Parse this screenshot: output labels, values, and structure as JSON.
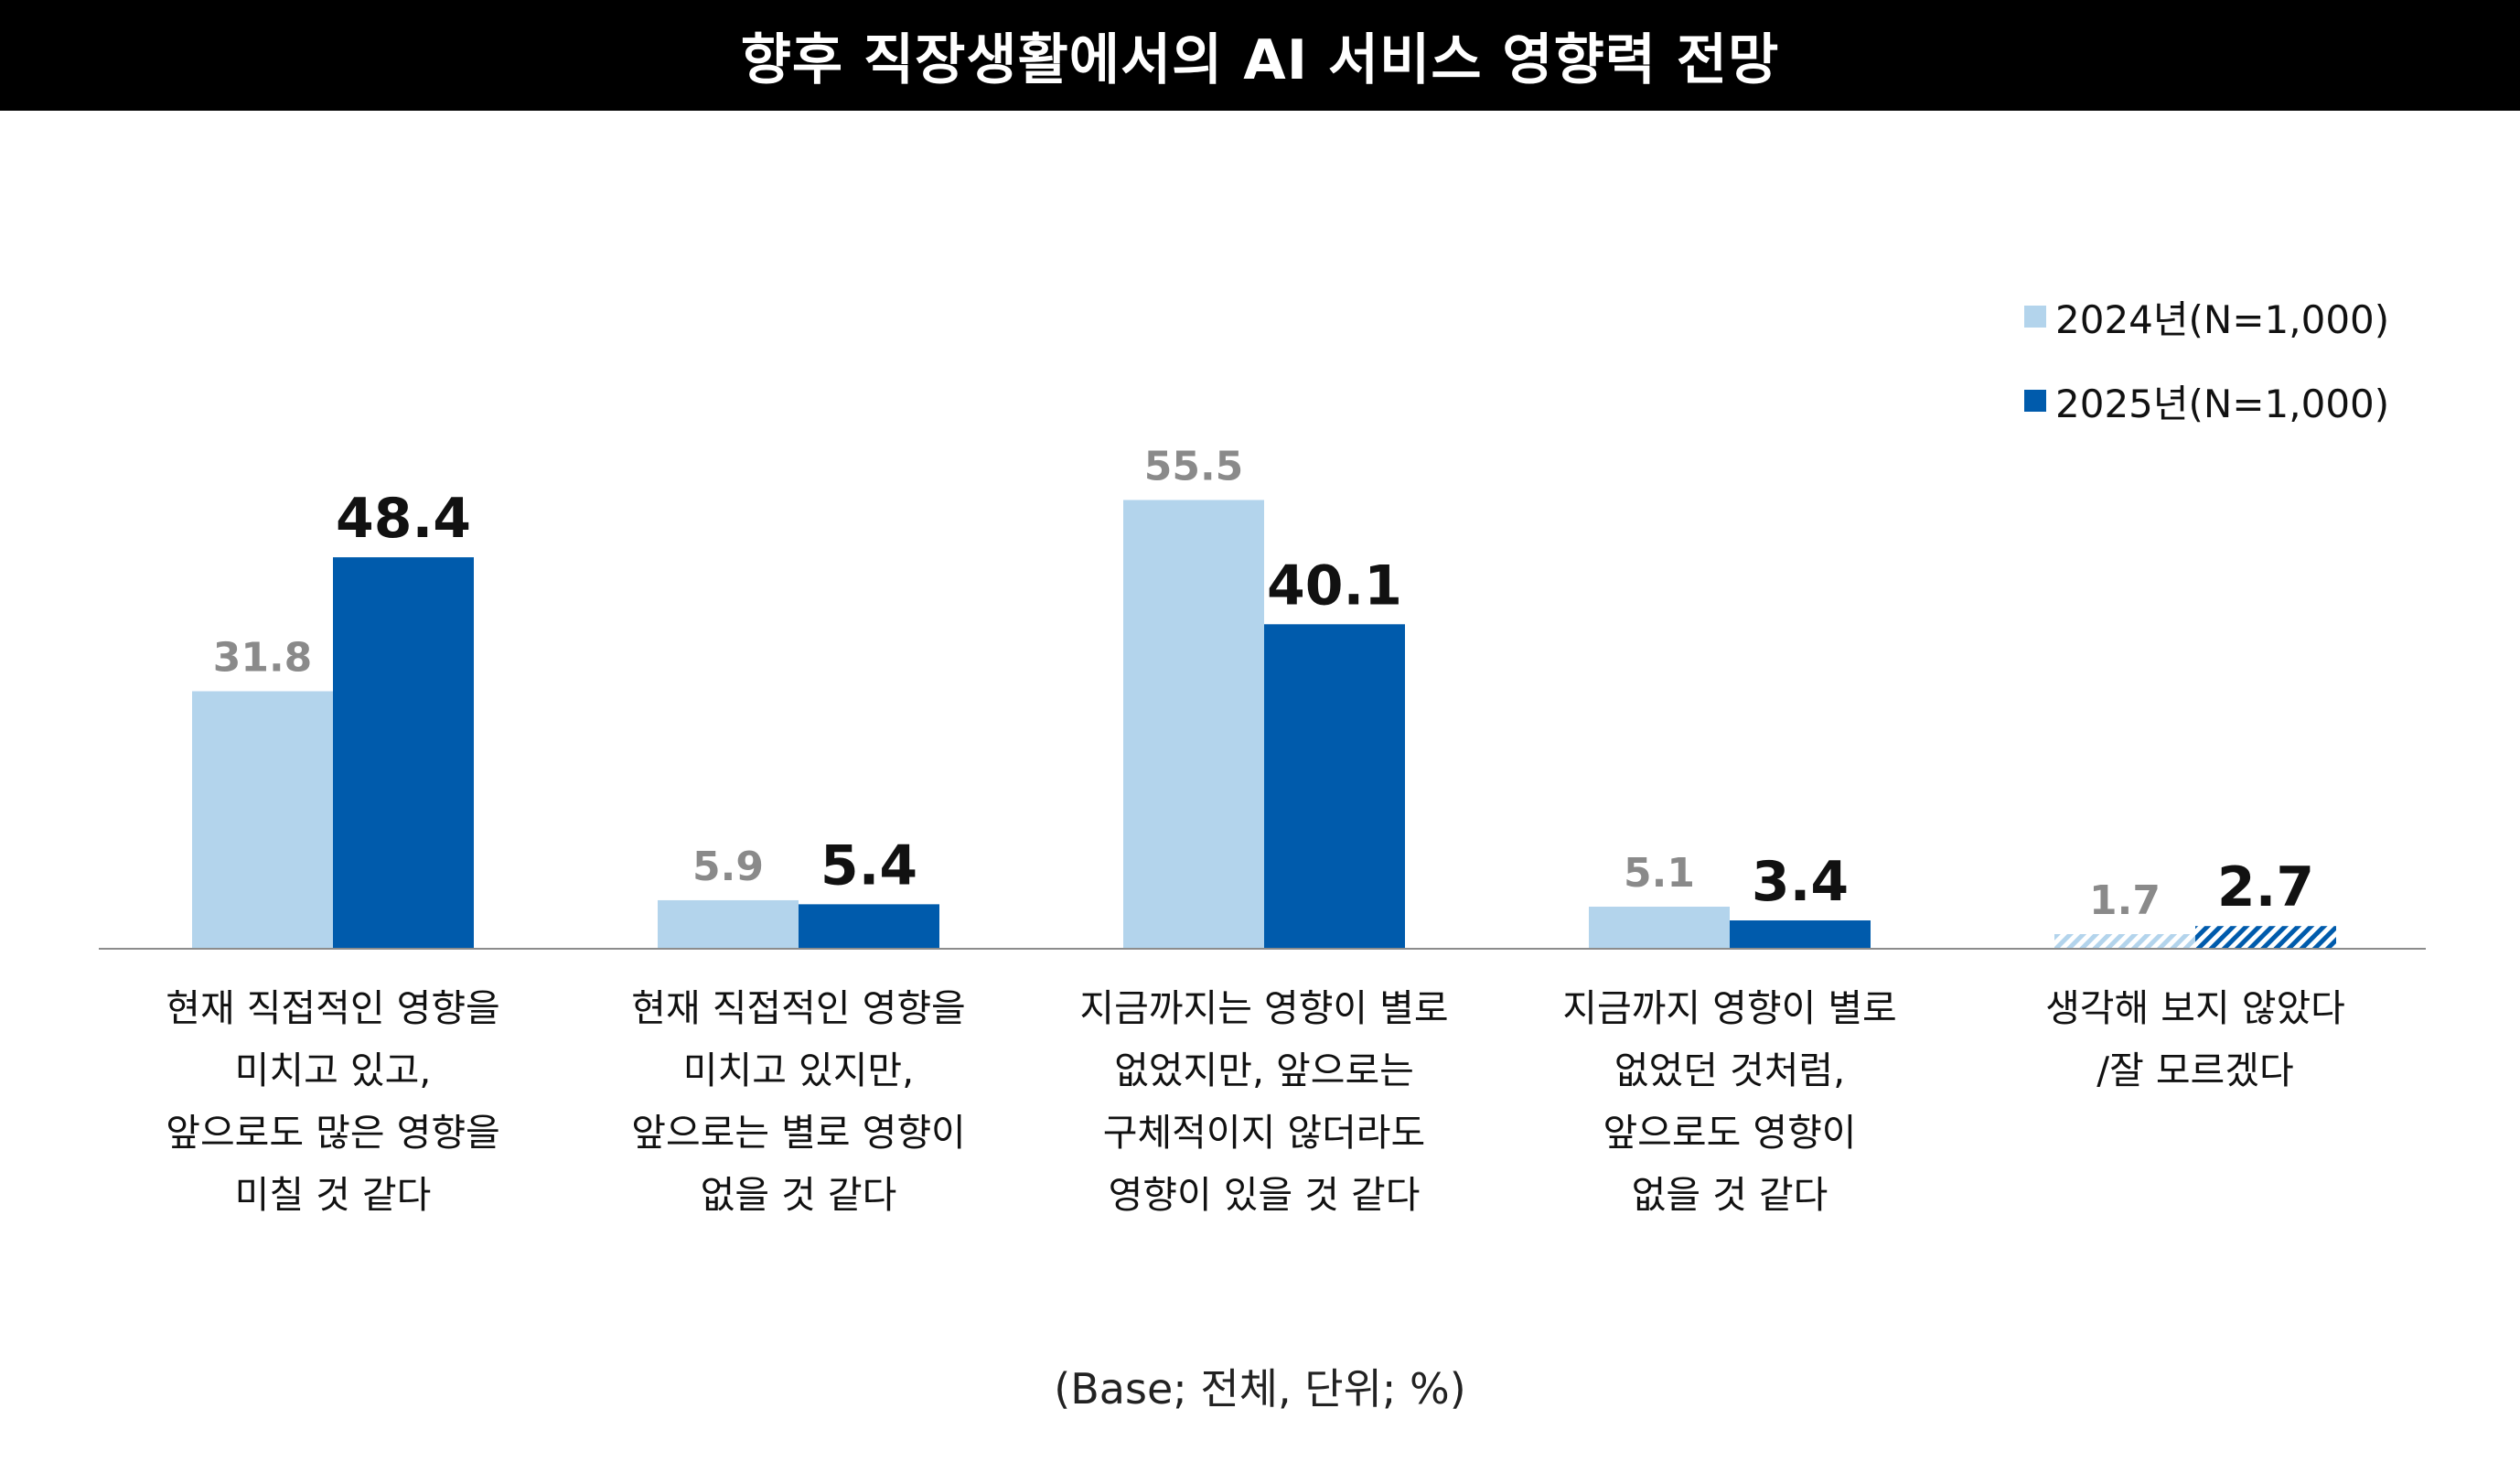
{
  "title": "향후 직장생활에서의 AI 서비스 영향력 전망",
  "note": "(Base; 전체, 단위; %)",
  "colors": {
    "series_2024": "#b3d4ec",
    "series_2025": "#005bac",
    "label_2024": "#8a8a8a",
    "label_2025": "#111111",
    "axis": "#8c8c8c"
  },
  "chart_data": {
    "type": "bar",
    "categories": [
      "현재 직접적인 영향을\n미치고 있고,\n앞으로도 많은 영향을\n미칠 것 같다",
      "현재 직접적인 영향을\n미치고 있지만,\n앞으로는 별로 영향이\n없을 것 같다",
      "지금까지는 영향이 별로\n없었지만, 앞으로는\n구체적이지 않더라도\n영향이 있을 것 같다",
      "지금까지 영향이 별로\n없었던 것처럼,\n앞으로도 영향이\n없을 것 같다",
      "생각해 보지 않았다\n/잘 모르겠다"
    ],
    "series": [
      {
        "name": "2024년(N=1,000)",
        "values": [
          31.8,
          5.9,
          55.5,
          5.1,
          1.7
        ],
        "labels": [
          "31.8",
          "5.9",
          "55.5",
          "5.1",
          "1.7"
        ]
      },
      {
        "name": "2025년(N=1,000)",
        "values": [
          48.4,
          5.4,
          40.1,
          3.4,
          2.7
        ],
        "labels": [
          "48.4",
          "5.4",
          "40.1",
          "3.4",
          "2.7"
        ]
      }
    ],
    "hatched_categories": [
      4
    ],
    "ylim": [
      0,
      60
    ],
    "grid": false,
    "legend_position": "top-right",
    "xlabel": "",
    "ylabel": ""
  }
}
